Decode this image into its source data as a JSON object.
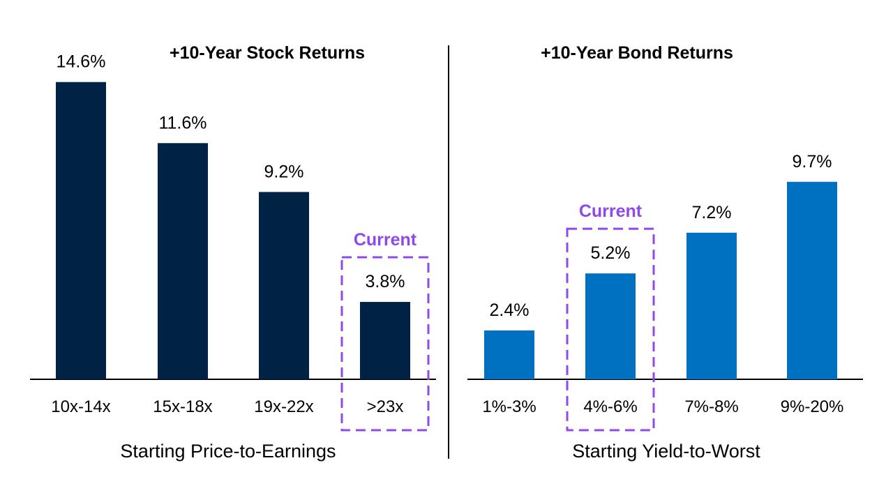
{
  "colors": {
    "stock_bar": "#002244",
    "bond_bar": "#0070C0",
    "highlight": "#8F49EA",
    "text": "#000000",
    "divider": "#000000"
  },
  "chart_data": [
    {
      "type": "bar",
      "title": "+10-Year Stock Returns",
      "xlabel": "Starting Price-to-Earnings",
      "categories": [
        "10x-14x",
        "15x-18x",
        "19x-22x",
        ">23x"
      ],
      "values": [
        14.6,
        11.6,
        9.2,
        3.8
      ],
      "data_labels": [
        "14.6%",
        "11.6%",
        "9.2%",
        "3.8%"
      ],
      "highlight_index": 3,
      "highlight_label": "Current",
      "ylim": [
        0,
        16
      ]
    },
    {
      "type": "bar",
      "title": "+10-Year Bond Returns",
      "xlabel": "Starting Yield-to-Worst",
      "categories": [
        "1%-3%",
        "4%-6%",
        "7%-8%",
        "9%-20%"
      ],
      "values": [
        2.4,
        5.2,
        7.2,
        9.7
      ],
      "data_labels": [
        "2.4%",
        "5.2%",
        "7.2%",
        "9.7%"
      ],
      "highlight_index": 1,
      "highlight_label": "Current",
      "ylim": [
        0,
        16
      ]
    }
  ]
}
